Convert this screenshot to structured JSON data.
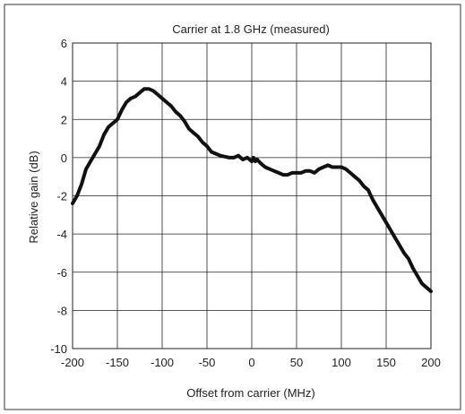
{
  "chart_data": {
    "type": "line",
    "title": "Carrier at 1.8 GHz (measured)",
    "xlabel": "Offset from carrier (MHz)",
    "ylabel": "Relative gain (dB)",
    "xlim": [
      -200,
      200
    ],
    "ylim": [
      -10,
      6
    ],
    "x_ticks": [
      -200,
      -150,
      -100,
      -50,
      0,
      50,
      100,
      150,
      200
    ],
    "y_ticks": [
      -10,
      -8,
      -6,
      -4,
      -2,
      0,
      2,
      4,
      6
    ],
    "x_tick_labels": [
      "-200",
      "-150",
      "-100",
      "-50",
      "0",
      "50",
      "100",
      "150",
      "200"
    ],
    "y_tick_labels": [
      "-10",
      "-8",
      "-6",
      "-4",
      "-2",
      "0",
      "2",
      "4",
      "6"
    ],
    "grid": true,
    "series": [
      {
        "color": "#111111",
        "x": [
          -200,
          -195,
          -190,
          -185,
          -180,
          -175,
          -170,
          -165,
          -160,
          -155,
          -150,
          -145,
          -140,
          -135,
          -130,
          -125,
          -120,
          -115,
          -110,
          -105,
          -100,
          -95,
          -90,
          -85,
          -80,
          -75,
          -70,
          -65,
          -60,
          -55,
          -50,
          -45,
          -40,
          -35,
          -30,
          -25,
          -20,
          -15,
          -10,
          -5,
          0,
          2,
          4,
          6,
          10,
          15,
          20,
          25,
          30,
          35,
          40,
          45,
          50,
          55,
          60,
          65,
          70,
          75,
          80,
          85,
          90,
          95,
          100,
          105,
          110,
          115,
          120,
          125,
          130,
          135,
          140,
          145,
          150,
          155,
          160,
          165,
          170,
          175,
          180,
          185,
          190,
          195,
          200
        ],
        "y": [
          -2.4,
          -2.0,
          -1.4,
          -0.6,
          -0.2,
          0.2,
          0.6,
          1.2,
          1.6,
          1.8,
          2.0,
          2.5,
          2.9,
          3.1,
          3.2,
          3.4,
          3.6,
          3.6,
          3.5,
          3.3,
          3.1,
          2.9,
          2.7,
          2.4,
          2.2,
          1.9,
          1.5,
          1.3,
          1.1,
          0.8,
          0.6,
          0.3,
          0.2,
          0.1,
          0.05,
          0.0,
          0.0,
          0.1,
          -0.1,
          0.0,
          -0.2,
          0.0,
          -0.2,
          -0.1,
          -0.3,
          -0.5,
          -0.6,
          -0.7,
          -0.8,
          -0.9,
          -0.9,
          -0.8,
          -0.8,
          -0.8,
          -0.7,
          -0.7,
          -0.8,
          -0.6,
          -0.5,
          -0.4,
          -0.5,
          -0.5,
          -0.5,
          -0.6,
          -0.8,
          -1.0,
          -1.2,
          -1.5,
          -1.7,
          -2.2,
          -2.6,
          -3.0,
          -3.4,
          -3.8,
          -4.2,
          -4.6,
          -5.0,
          -5.3,
          -5.8,
          -6.2,
          -6.6,
          -6.8,
          -7.0
        ]
      }
    ]
  }
}
